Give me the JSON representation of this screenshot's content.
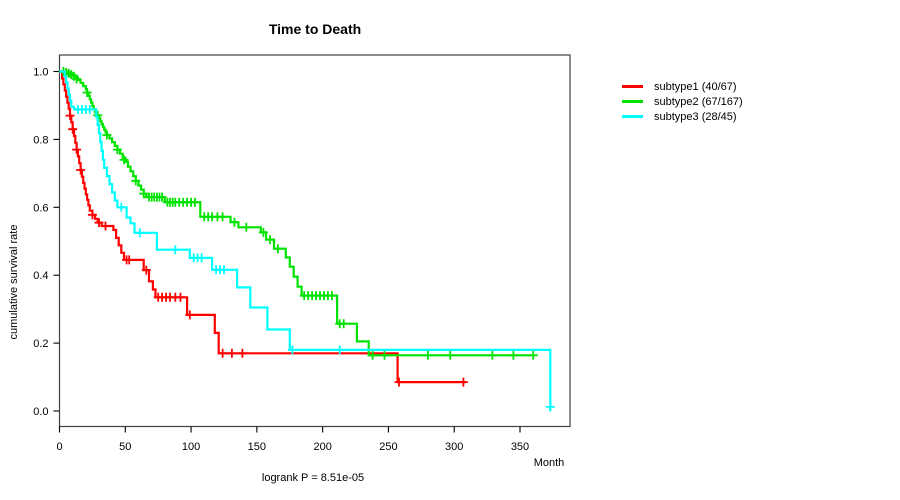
{
  "title": "Time to Death",
  "subtitle": "logrank P = 8.51e-05",
  "chart_data": {
    "type": "line",
    "variant": "kaplan-meier-step",
    "title": "Time to Death",
    "xlabel": "Month",
    "ylabel": "cumulative survival rate",
    "footnote": "logrank P = 8.51e-05",
    "xlim": [
      0,
      388
    ],
    "ylim": [
      0,
      1.04
    ],
    "x_ticks": [
      0,
      50,
      100,
      150,
      200,
      250,
      300,
      350
    ],
    "y_ticks": [
      "0.0",
      "0.2",
      "0.4",
      "0.6",
      "0.8",
      "1.0"
    ],
    "grid": false,
    "legend_position": "right-outside",
    "axis_color": "#404040",
    "series": [
      {
        "name": "subtype1",
        "legend_label": "subtype1 (40/67)",
        "events": 40,
        "n": 67,
        "color": "#ff0000",
        "points": [
          [
            0,
            1
          ],
          [
            2,
            0.98
          ],
          [
            3,
            0.962
          ],
          [
            4,
            0.944
          ],
          [
            5,
            0.926
          ],
          [
            6,
            0.908
          ],
          [
            7,
            0.89
          ],
          [
            8,
            0.87
          ],
          [
            9,
            0.85
          ],
          [
            10,
            0.83
          ],
          [
            11,
            0.81
          ],
          [
            12,
            0.79
          ],
          [
            13,
            0.77
          ],
          [
            14,
            0.75
          ],
          [
            15,
            0.73
          ],
          [
            16,
            0.71
          ],
          [
            17,
            0.69
          ],
          [
            18,
            0.672
          ],
          [
            19,
            0.655
          ],
          [
            20,
            0.638
          ],
          [
            21,
            0.622
          ],
          [
            22,
            0.606
          ],
          [
            23,
            0.59
          ],
          [
            25,
            0.578
          ],
          [
            27,
            0.566
          ],
          [
            29,
            0.555
          ],
          [
            32,
            0.545
          ],
          [
            41,
            0.533
          ],
          [
            43,
            0.51
          ],
          [
            45,
            0.488
          ],
          [
            47,
            0.466
          ],
          [
            49,
            0.445
          ],
          [
            64,
            0.415
          ],
          [
            68,
            0.382
          ],
          [
            71,
            0.358
          ],
          [
            73,
            0.335
          ],
          [
            97,
            0.283
          ],
          [
            118,
            0.23
          ],
          [
            121,
            0.17
          ],
          [
            257,
            0.085
          ],
          [
            309,
            0.085
          ]
        ],
        "censors": [
          [
            8,
            0.87
          ],
          [
            10,
            0.83
          ],
          [
            13,
            0.77
          ],
          [
            16,
            0.71
          ],
          [
            25,
            0.578
          ],
          [
            30,
            0.555
          ],
          [
            35,
            0.545
          ],
          [
            51,
            0.445
          ],
          [
            53,
            0.445
          ],
          [
            66,
            0.415
          ],
          [
            75,
            0.335
          ],
          [
            78,
            0.335
          ],
          [
            81,
            0.335
          ],
          [
            84,
            0.335
          ],
          [
            88,
            0.335
          ],
          [
            92,
            0.335
          ],
          [
            99,
            0.283
          ],
          [
            124,
            0.17
          ],
          [
            131,
            0.17
          ],
          [
            139,
            0.17
          ],
          [
            258,
            0.085
          ],
          [
            307,
            0.085
          ]
        ]
      },
      {
        "name": "subtype2",
        "legend_label": "subtype2 (67/167)",
        "events": 67,
        "n": 167,
        "color": "#00e300",
        "points": [
          [
            0,
            1
          ],
          [
            4,
            0.997
          ],
          [
            8,
            0.993
          ],
          [
            10,
            0.988
          ],
          [
            12,
            0.982
          ],
          [
            14,
            0.975
          ],
          [
            16,
            0.966
          ],
          [
            18,
            0.957
          ],
          [
            20,
            0.948
          ],
          [
            21,
            0.938
          ],
          [
            22,
            0.928
          ],
          [
            23,
            0.918
          ],
          [
            24,
            0.908
          ],
          [
            25,
            0.898
          ],
          [
            26,
            0.889
          ],
          [
            27,
            0.88
          ],
          [
            28,
            0.871
          ],
          [
            30,
            0.862
          ],
          [
            31,
            0.853
          ],
          [
            32,
            0.845
          ],
          [
            33,
            0.837
          ],
          [
            34,
            0.829
          ],
          [
            35,
            0.821
          ],
          [
            36,
            0.813
          ],
          [
            38,
            0.803
          ],
          [
            40,
            0.792
          ],
          [
            42,
            0.781
          ],
          [
            44,
            0.77
          ],
          [
            46,
            0.758
          ],
          [
            48,
            0.746
          ],
          [
            50,
            0.734
          ],
          [
            52,
            0.72
          ],
          [
            54,
            0.706
          ],
          [
            56,
            0.692
          ],
          [
            58,
            0.678
          ],
          [
            60,
            0.664
          ],
          [
            62,
            0.652
          ],
          [
            64,
            0.64
          ],
          [
            66,
            0.63
          ],
          [
            80,
            0.615
          ],
          [
            107,
            0.572
          ],
          [
            130,
            0.556
          ],
          [
            136,
            0.541
          ],
          [
            153,
            0.526
          ],
          [
            157,
            0.505
          ],
          [
            163,
            0.478
          ],
          [
            172,
            0.452
          ],
          [
            175,
            0.425
          ],
          [
            178,
            0.396
          ],
          [
            181,
            0.366
          ],
          [
            184,
            0.34
          ],
          [
            211,
            0.257
          ],
          [
            226,
            0.205
          ],
          [
            235,
            0.164
          ],
          [
            361,
            0.164
          ]
        ],
        "censors": [
          [
            3,
            1
          ],
          [
            5,
            0.997
          ],
          [
            7,
            0.995
          ],
          [
            9,
            0.991
          ],
          [
            11,
            0.986
          ],
          [
            13,
            0.978
          ],
          [
            21,
            0.938
          ],
          [
            29,
            0.871
          ],
          [
            36,
            0.813
          ],
          [
            44,
            0.77
          ],
          [
            49,
            0.74
          ],
          [
            58,
            0.678
          ],
          [
            64,
            0.64
          ],
          [
            68,
            0.63
          ],
          [
            70,
            0.63
          ],
          [
            72,
            0.63
          ],
          [
            74,
            0.63
          ],
          [
            76,
            0.63
          ],
          [
            78,
            0.63
          ],
          [
            82,
            0.615
          ],
          [
            84,
            0.615
          ],
          [
            86,
            0.615
          ],
          [
            88,
            0.615
          ],
          [
            91,
            0.615
          ],
          [
            94,
            0.615
          ],
          [
            97,
            0.615
          ],
          [
            100,
            0.615
          ],
          [
            103,
            0.615
          ],
          [
            110,
            0.572
          ],
          [
            113,
            0.572
          ],
          [
            116,
            0.572
          ],
          [
            120,
            0.572
          ],
          [
            124,
            0.572
          ],
          [
            133,
            0.556
          ],
          [
            142,
            0.541
          ],
          [
            155,
            0.526
          ],
          [
            160,
            0.505
          ],
          [
            166,
            0.478
          ],
          [
            186,
            0.34
          ],
          [
            189,
            0.34
          ],
          [
            192,
            0.34
          ],
          [
            195,
            0.34
          ],
          [
            198,
            0.34
          ],
          [
            201,
            0.34
          ],
          [
            204,
            0.34
          ],
          [
            207,
            0.34
          ],
          [
            213,
            0.257
          ],
          [
            216,
            0.257
          ],
          [
            238,
            0.164
          ],
          [
            247,
            0.164
          ],
          [
            280,
            0.164
          ],
          [
            297,
            0.164
          ],
          [
            329,
            0.164
          ],
          [
            345,
            0.164
          ],
          [
            360,
            0.164
          ]
        ]
      },
      {
        "name": "subtype3",
        "legend_label": "subtype3 (28/45)",
        "events": 28,
        "n": 45,
        "color": "#00ffff",
        "points": [
          [
            0,
            1
          ],
          [
            4,
            0.985
          ],
          [
            5,
            0.968
          ],
          [
            6,
            0.95
          ],
          [
            7,
            0.932
          ],
          [
            8,
            0.914
          ],
          [
            9,
            0.896
          ],
          [
            11,
            0.89
          ],
          [
            12,
            0.888
          ],
          [
            28,
            0.866
          ],
          [
            29,
            0.842
          ],
          [
            30,
            0.818
          ],
          [
            31,
            0.792
          ],
          [
            32,
            0.766
          ],
          [
            33,
            0.74
          ],
          [
            34,
            0.716
          ],
          [
            36,
            0.692
          ],
          [
            38,
            0.668
          ],
          [
            40,
            0.644
          ],
          [
            42,
            0.62
          ],
          [
            44,
            0.6
          ],
          [
            51,
            0.57
          ],
          [
            54,
            0.553
          ],
          [
            57,
            0.525
          ],
          [
            74,
            0.475
          ],
          [
            99,
            0.451
          ],
          [
            116,
            0.416
          ],
          [
            135,
            0.364
          ],
          [
            145,
            0.305
          ],
          [
            158,
            0.24
          ],
          [
            175,
            0.18
          ],
          [
            373,
            0
          ]
        ],
        "censors": [
          [
            14,
            0.888
          ],
          [
            17,
            0.888
          ],
          [
            20,
            0.888
          ],
          [
            23,
            0.888
          ],
          [
            47,
            0.6
          ],
          [
            61,
            0.525
          ],
          [
            88,
            0.475
          ],
          [
            102,
            0.451
          ],
          [
            105,
            0.451
          ],
          [
            108,
            0.451
          ],
          [
            119,
            0.416
          ],
          [
            122,
            0.416
          ],
          [
            125,
            0.416
          ],
          [
            177,
            0.18
          ],
          [
            213,
            0.18
          ],
          [
            373,
            0.012
          ]
        ]
      }
    ]
  }
}
